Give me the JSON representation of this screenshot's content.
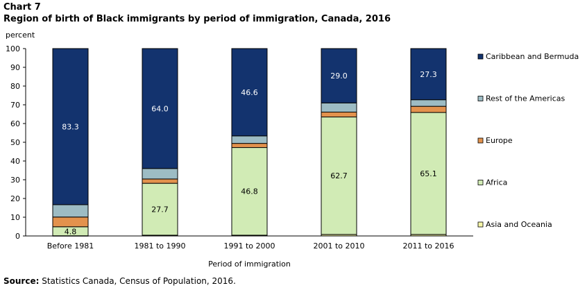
{
  "header": {
    "chart_number": "Chart 7",
    "title": "Region of birth of Black immigrants by period of immigration, Canada, 2016"
  },
  "source": {
    "label": "Source:",
    "text": " Statistics Canada, Census of Population, 2016."
  },
  "chart_data": {
    "type": "bar",
    "stacked": true,
    "title": "Region of birth of Black immigrants by period of immigration, Canada, 2016",
    "xlabel": "Period of immigration",
    "ylabel": "percent",
    "ylim": [
      0,
      100
    ],
    "yticks": [
      0,
      10,
      20,
      30,
      40,
      50,
      60,
      70,
      80,
      90,
      100
    ],
    "legend_position": "right",
    "categories": [
      "Before 1981",
      "1981 to 1990",
      "1991 to 2000",
      "2001 to 2010",
      "2011 to 2016"
    ],
    "series": [
      {
        "name": "Asia and Oceania",
        "color": "#f5f5a8",
        "values": [
          0.1,
          0.4,
          0.4,
          0.8,
          0.8
        ],
        "labels": [
          null,
          null,
          null,
          null,
          null
        ]
      },
      {
        "name": "Africa",
        "color": "#d1ebb5",
        "values": [
          4.8,
          27.7,
          46.8,
          62.7,
          65.1
        ],
        "labels": [
          "4.8",
          "27.7",
          "46.8",
          "62.7",
          "65.1"
        ]
      },
      {
        "name": "Europe",
        "color": "#e3924d",
        "values": [
          5.2,
          2.3,
          2.2,
          2.6,
          3.3
        ],
        "labels": [
          null,
          null,
          null,
          null,
          null
        ]
      },
      {
        "name": "Rest of the Americas",
        "color": "#9dbcc4",
        "values": [
          6.6,
          5.6,
          4.0,
          4.9,
          3.5
        ],
        "labels": [
          null,
          null,
          null,
          null,
          null
        ]
      },
      {
        "name": "Caribbean and Bermuda",
        "color": "#13336e",
        "values": [
          83.3,
          64.0,
          46.6,
          29.0,
          27.3
        ],
        "labels": [
          "83.3",
          "64.0",
          "46.6",
          "29.0",
          "27.3"
        ]
      }
    ]
  }
}
